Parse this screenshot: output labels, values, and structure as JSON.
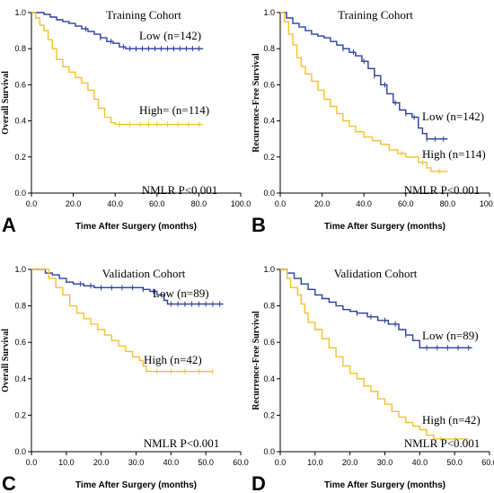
{
  "chart_data": [
    {
      "panel_letter": "A",
      "type": "line",
      "title": "Training Cohort",
      "xlabel": "Time After Surgery (months)",
      "ylabel": "Overall Survival",
      "xlim": [
        0,
        100
      ],
      "ylim": [
        0,
        1
      ],
      "x_ticks": [
        "0.0",
        "20.0",
        "40.0",
        "60.0",
        "80.0",
        "100.0"
      ],
      "y_ticks": [
        "0.0",
        "0.2",
        "0.4",
        "0.6",
        "0.8",
        "1.0"
      ],
      "annotation": "NMLR P<0.001",
      "series": [
        {
          "name": "Low (n=142)",
          "color": "#2a3f9e",
          "points": [
            [
              0,
              1
            ],
            [
              4,
              1
            ],
            [
              6,
              0.99
            ],
            [
              9,
              0.975
            ],
            [
              12,
              0.96
            ],
            [
              15,
              0.95
            ],
            [
              18,
              0.94
            ],
            [
              21,
              0.925
            ],
            [
              24,
              0.91
            ],
            [
              27,
              0.895
            ],
            [
              30,
              0.88
            ],
            [
              33,
              0.86
            ],
            [
              36,
              0.84
            ],
            [
              39,
              0.83
            ],
            [
              42,
              0.81
            ],
            [
              45,
              0.8
            ],
            [
              50,
              0.8
            ],
            [
              60,
              0.8
            ],
            [
              70,
              0.8
            ],
            [
              82,
              0.8
            ]
          ],
          "censor_x": [
            26,
            33,
            38,
            44,
            47,
            50,
            53,
            56,
            59,
            62,
            65,
            68,
            71,
            74,
            77,
            80
          ]
        },
        {
          "name": "High= (n=114)",
          "color": "#f2c12e",
          "points": [
            [
              0,
              1
            ],
            [
              2,
              0.97
            ],
            [
              4,
              0.93
            ],
            [
              6,
              0.9
            ],
            [
              8,
              0.85
            ],
            [
              10,
              0.8
            ],
            [
              12,
              0.74
            ],
            [
              15,
              0.7
            ],
            [
              18,
              0.67
            ],
            [
              21,
              0.64
            ],
            [
              24,
              0.61
            ],
            [
              27,
              0.57
            ],
            [
              30,
              0.52
            ],
            [
              32,
              0.47
            ],
            [
              35,
              0.42
            ],
            [
              38,
              0.39
            ],
            [
              40,
              0.38
            ],
            [
              50,
              0.38
            ],
            [
              60,
              0.38
            ],
            [
              82,
              0.38
            ]
          ],
          "censor_x": [
            42,
            47,
            52,
            56,
            60,
            65,
            70,
            75,
            80
          ]
        }
      ]
    },
    {
      "panel_letter": "B",
      "type": "line",
      "title": "Training Cohort",
      "xlabel": "Time After Surgery (months)",
      "ylabel": "Recurrence-Free Survival",
      "xlim": [
        0,
        100
      ],
      "ylim": [
        0,
        1
      ],
      "x_ticks": [
        "0.0",
        "20.0",
        "40.0",
        "60.0",
        "80.0",
        "100.0"
      ],
      "y_ticks": [
        "0.0",
        "0.2",
        "0.4",
        "0.6",
        "0.8",
        "1.0"
      ],
      "annotation": "NMLR P<0.001",
      "series": [
        {
          "name": "Low (n=142)",
          "color": "#2a3f9e",
          "points": [
            [
              0,
              1
            ],
            [
              3,
              0.97
            ],
            [
              6,
              0.94
            ],
            [
              9,
              0.92
            ],
            [
              12,
              0.9
            ],
            [
              15,
              0.88
            ],
            [
              18,
              0.87
            ],
            [
              21,
              0.86
            ],
            [
              24,
              0.84
            ],
            [
              27,
              0.82
            ],
            [
              30,
              0.8
            ],
            [
              33,
              0.78
            ],
            [
              36,
              0.76
            ],
            [
              39,
              0.73
            ],
            [
              42,
              0.69
            ],
            [
              45,
              0.65
            ],
            [
              48,
              0.6
            ],
            [
              51,
              0.55
            ],
            [
              54,
              0.5
            ],
            [
              57,
              0.46
            ],
            [
              60,
              0.44
            ],
            [
              63,
              0.42
            ],
            [
              66,
              0.36
            ],
            [
              68,
              0.33
            ],
            [
              70,
              0.3
            ],
            [
              80,
              0.3
            ]
          ],
          "censor_x": [
            30,
            35,
            40,
            45,
            50,
            55,
            60,
            64,
            70,
            74,
            78
          ]
        },
        {
          "name": "High (n=114)",
          "color": "#f2c12e",
          "points": [
            [
              0,
              1
            ],
            [
              2,
              0.95
            ],
            [
              4,
              0.88
            ],
            [
              6,
              0.82
            ],
            [
              8,
              0.75
            ],
            [
              10,
              0.7
            ],
            [
              12,
              0.66
            ],
            [
              15,
              0.62
            ],
            [
              18,
              0.57
            ],
            [
              21,
              0.52
            ],
            [
              24,
              0.48
            ],
            [
              27,
              0.44
            ],
            [
              30,
              0.4
            ],
            [
              33,
              0.37
            ],
            [
              36,
              0.34
            ],
            [
              40,
              0.31
            ],
            [
              44,
              0.29
            ],
            [
              48,
              0.27
            ],
            [
              52,
              0.24
            ],
            [
              56,
              0.22
            ],
            [
              60,
              0.2
            ],
            [
              66,
              0.17
            ],
            [
              70,
              0.14
            ],
            [
              72,
              0.12
            ],
            [
              80,
              0.12
            ]
          ],
          "censor_x": [
            58,
            68,
            76
          ]
        }
      ]
    },
    {
      "panel_letter": "C",
      "type": "line",
      "title": "Validation Cohort",
      "xlabel": "Time After Surgery (months)",
      "ylabel": "Overall Survival",
      "xlim": [
        0,
        60
      ],
      "ylim": [
        0,
        1
      ],
      "x_ticks": [
        "0.0",
        "10.0",
        "20.0",
        "30.0",
        "40.0",
        "50.0",
        "60.0"
      ],
      "y_ticks": [
        "0.0",
        "0.2",
        "0.4",
        "0.6",
        "0.8",
        "1.0"
      ],
      "annotation": "NMLR P<0.001",
      "series": [
        {
          "name": "Low (n=89)",
          "color": "#2a3f9e",
          "points": [
            [
              0,
              1
            ],
            [
              3,
              1
            ],
            [
              4,
              0.98
            ],
            [
              6,
              0.97
            ],
            [
              8,
              0.95
            ],
            [
              10,
              0.93
            ],
            [
              12,
              0.92
            ],
            [
              15,
              0.91
            ],
            [
              18,
              0.9
            ],
            [
              30,
              0.9
            ],
            [
              32,
              0.89
            ],
            [
              34,
              0.88
            ],
            [
              36,
              0.86
            ],
            [
              38,
              0.83
            ],
            [
              39,
              0.81
            ],
            [
              55,
              0.81
            ]
          ],
          "censor_x": [
            14,
            17,
            20,
            23,
            26,
            29,
            32,
            35,
            40,
            42,
            44,
            46,
            48,
            50,
            52,
            54
          ]
        },
        {
          "name": "High (n=42)",
          "color": "#f2c12e",
          "points": [
            [
              0,
              1
            ],
            [
              3,
              1
            ],
            [
              5,
              0.95
            ],
            [
              7,
              0.9
            ],
            [
              9,
              0.86
            ],
            [
              11,
              0.8
            ],
            [
              13,
              0.76
            ],
            [
              15,
              0.73
            ],
            [
              17,
              0.7
            ],
            [
              19,
              0.67
            ],
            [
              21,
              0.64
            ],
            [
              23,
              0.61
            ],
            [
              25,
              0.58
            ],
            [
              27,
              0.55
            ],
            [
              29,
              0.52
            ],
            [
              31,
              0.5
            ],
            [
              32,
              0.47
            ],
            [
              33,
              0.44
            ],
            [
              45,
              0.44
            ],
            [
              52,
              0.44
            ]
          ],
          "censor_x": [
            36,
            40,
            44,
            48,
            52
          ]
        }
      ]
    },
    {
      "panel_letter": "D",
      "type": "line",
      "title": "Validation Cohort",
      "xlabel": "Time After Surgery (months)",
      "ylabel": "Recurrence-Free Survival",
      "xlim": [
        0,
        60
      ],
      "ylim": [
        0,
        1
      ],
      "x_ticks": [
        "0.0",
        "10.0",
        "20.0",
        "30.0",
        "40.0",
        "50.0",
        "60.0"
      ],
      "y_ticks": [
        "0.0",
        "0.2",
        "0.4",
        "0.6",
        "0.8",
        "1.0"
      ],
      "annotation": "NMLR P<0.001",
      "series": [
        {
          "name": "Low (n=89)",
          "color": "#2a3f9e",
          "points": [
            [
              0,
              1
            ],
            [
              2,
              0.98
            ],
            [
              4,
              0.95
            ],
            [
              6,
              0.92
            ],
            [
              8,
              0.89
            ],
            [
              10,
              0.86
            ],
            [
              12,
              0.84
            ],
            [
              14,
              0.82
            ],
            [
              16,
              0.8
            ],
            [
              18,
              0.78
            ],
            [
              20,
              0.77
            ],
            [
              22,
              0.76
            ],
            [
              25,
              0.74
            ],
            [
              28,
              0.72
            ],
            [
              31,
              0.7
            ],
            [
              34,
              0.67
            ],
            [
              36,
              0.64
            ],
            [
              38,
              0.61
            ],
            [
              40,
              0.57
            ],
            [
              55,
              0.57
            ]
          ],
          "censor_x": [
            22,
            26,
            30,
            33,
            36,
            42,
            45,
            48,
            51,
            54
          ]
        },
        {
          "name": "High (n=42)",
          "color": "#f2c12e",
          "points": [
            [
              0,
              1
            ],
            [
              2,
              0.95
            ],
            [
              3,
              0.9
            ],
            [
              5,
              0.86
            ],
            [
              6,
              0.81
            ],
            [
              7,
              0.76
            ],
            [
              8,
              0.71
            ],
            [
              10,
              0.67
            ],
            [
              12,
              0.62
            ],
            [
              14,
              0.57
            ],
            [
              16,
              0.52
            ],
            [
              18,
              0.47
            ],
            [
              20,
              0.43
            ],
            [
              22,
              0.4
            ],
            [
              24,
              0.36
            ],
            [
              26,
              0.33
            ],
            [
              28,
              0.29
            ],
            [
              30,
              0.26
            ],
            [
              32,
              0.22
            ],
            [
              34,
              0.19
            ],
            [
              36,
              0.16
            ],
            [
              38,
              0.14
            ],
            [
              40,
              0.12
            ],
            [
              42,
              0.09
            ],
            [
              44,
              0.07
            ],
            [
              54,
              0.07
            ]
          ],
          "censor_x": [
            46,
            50
          ]
        }
      ]
    }
  ]
}
